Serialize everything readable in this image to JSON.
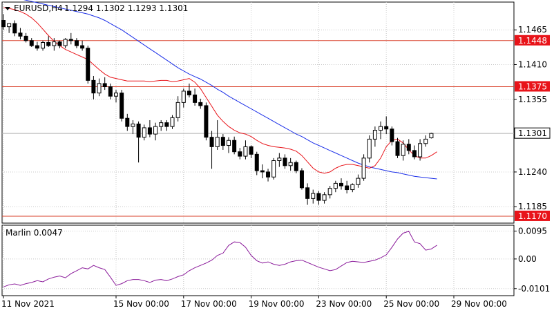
{
  "header": {
    "symbol": "EURUSD,H4",
    "ohlc": "1.1294 1.1302 1.1293 1.1301"
  },
  "indicator": {
    "label": "Marlin 0.0047"
  },
  "colors": {
    "bull_body": "#ffffff",
    "bear_body": "#000000",
    "ma_fast": "#e8141a",
    "ma_slow": "#1a2ee8",
    "level_line": "#d9402a",
    "level_badge": "#e8141a",
    "oscillator": "#8a1a9a",
    "grid": "#c8c8c8"
  },
  "chart_data": [
    {
      "type": "candlestick",
      "title": "",
      "y_ticks": [
        "1.1465",
        "1.1410",
        "1.1355",
        "1.1240",
        "1.1185"
      ],
      "y_tick_values": [
        1.1465,
        1.141,
        1.1355,
        1.124,
        1.1185
      ],
      "ylim": [
        1.1159,
        1.1509
      ],
      "x_ticks": [
        "11 Nov 2021",
        "15 Nov 00:00",
        "17 Nov 00:00",
        "19 Nov 00:00",
        "23 Nov 00:00",
        "25 Nov 00:00",
        "29 Nov 00:00"
      ],
      "x_tick_bars": [
        0,
        20,
        32,
        44,
        56,
        68,
        80
      ],
      "horizontal_levels": [
        {
          "value": 1.1448,
          "label": "1.1448"
        },
        {
          "value": 1.1375,
          "label": "1.1375"
        },
        {
          "value": 1.117,
          "label": "1.1170"
        }
      ],
      "current_price": {
        "value": 1.1301,
        "label": "1.1301"
      },
      "candles": [
        [
          1.148,
          1.149,
          1.1465,
          1.147
        ],
        [
          1.147,
          1.1475,
          1.146,
          1.1475
        ],
        [
          1.1475,
          1.148,
          1.1455,
          1.146
        ],
        [
          1.146,
          1.1468,
          1.145,
          1.1455
        ],
        [
          1.1455,
          1.146,
          1.1445,
          1.1448
        ],
        [
          1.1448,
          1.1452,
          1.1438,
          1.144
        ],
        [
          1.144,
          1.1446,
          1.1432,
          1.1436
        ],
        [
          1.1436,
          1.1448,
          1.1432,
          1.1445
        ],
        [
          1.1445,
          1.1455,
          1.1438,
          1.144
        ],
        [
          1.144,
          1.1452,
          1.1432,
          1.1446
        ],
        [
          1.1446,
          1.1448,
          1.1436,
          1.144
        ],
        [
          1.144,
          1.1452,
          1.1436,
          1.145
        ],
        [
          1.145,
          1.146,
          1.1442,
          1.1448
        ],
        [
          1.1448,
          1.1452,
          1.1436,
          1.144
        ],
        [
          1.144,
          1.1448,
          1.1432,
          1.1436
        ],
        [
          1.1436,
          1.144,
          1.138,
          1.1385
        ],
        [
          1.1385,
          1.1392,
          1.1355,
          1.1365
        ],
        [
          1.1365,
          1.1388,
          1.136,
          1.138
        ],
        [
          1.138,
          1.139,
          1.137,
          1.1375
        ],
        [
          1.1375,
          1.138,
          1.1355,
          1.136
        ],
        [
          1.136,
          1.137,
          1.135,
          1.1365
        ],
        [
          1.1365,
          1.137,
          1.132,
          1.1325
        ],
        [
          1.1325,
          1.1332,
          1.1305,
          1.1312
        ],
        [
          1.1312,
          1.1322,
          1.13,
          1.1316
        ],
        [
          1.1316,
          1.132,
          1.1255,
          1.1295
        ],
        [
          1.1295,
          1.1315,
          1.129,
          1.131
        ],
        [
          1.131,
          1.1322,
          1.1295,
          1.13
        ],
        [
          1.13,
          1.1318,
          1.129,
          1.1312
        ],
        [
          1.1312,
          1.1322,
          1.1305,
          1.1318
        ],
        [
          1.1318,
          1.1322,
          1.1305,
          1.1312
        ],
        [
          1.1312,
          1.133,
          1.1308,
          1.1326
        ],
        [
          1.1326,
          1.136,
          1.132,
          1.135
        ],
        [
          1.135,
          1.1372,
          1.1342,
          1.1368
        ],
        [
          1.1368,
          1.138,
          1.1358,
          1.1362
        ],
        [
          1.1362,
          1.1372,
          1.1345,
          1.135
        ],
        [
          1.135,
          1.1356,
          1.134,
          1.1345
        ],
        [
          1.1345,
          1.135,
          1.129,
          1.1295
        ],
        [
          1.1295,
          1.1305,
          1.1245,
          1.128
        ],
        [
          1.128,
          1.1322,
          1.1275,
          1.1295
        ],
        [
          1.1295,
          1.13,
          1.1275,
          1.1282
        ],
        [
          1.1282,
          1.1295,
          1.127,
          1.129
        ],
        [
          1.129,
          1.1296,
          1.1268,
          1.1272
        ],
        [
          1.1272,
          1.1278,
          1.126,
          1.1265
        ],
        [
          1.1265,
          1.129,
          1.126,
          1.128
        ],
        [
          1.128,
          1.1282,
          1.1262,
          1.1268
        ],
        [
          1.1268,
          1.1272,
          1.1235,
          1.1242
        ],
        [
          1.1242,
          1.1252,
          1.123,
          1.124
        ],
        [
          1.124,
          1.1245,
          1.1225,
          1.1232
        ],
        [
          1.1232,
          1.1262,
          1.1228,
          1.1258
        ],
        [
          1.1258,
          1.127,
          1.1248,
          1.1262
        ],
        [
          1.1262,
          1.1268,
          1.1245,
          1.125
        ],
        [
          1.125,
          1.1262,
          1.1242,
          1.1255
        ],
        [
          1.1255,
          1.1258,
          1.1238,
          1.1242
        ],
        [
          1.1242,
          1.1246,
          1.1212,
          1.1215
        ],
        [
          1.1215,
          1.1222,
          1.1188,
          1.1198
        ],
        [
          1.1198,
          1.1212,
          1.119,
          1.1206
        ],
        [
          1.1206,
          1.121,
          1.1188,
          1.1195
        ],
        [
          1.1195,
          1.1208,
          1.119,
          1.1204
        ],
        [
          1.1204,
          1.1218,
          1.1198,
          1.1214
        ],
        [
          1.1214,
          1.1226,
          1.1208,
          1.1222
        ],
        [
          1.1222,
          1.123,
          1.1212,
          1.1218
        ],
        [
          1.1218,
          1.1226,
          1.1206,
          1.1212
        ],
        [
          1.1212,
          1.1222,
          1.1208,
          1.122
        ],
        [
          1.122,
          1.1236,
          1.1215,
          1.123
        ],
        [
          1.123,
          1.1268,
          1.1226,
          1.1262
        ],
        [
          1.1262,
          1.1298,
          1.1255,
          1.1292
        ],
        [
          1.1292,
          1.1312,
          1.128,
          1.1306
        ],
        [
          1.1306,
          1.132,
          1.1292,
          1.1312
        ],
        [
          1.1312,
          1.1328,
          1.13,
          1.1308
        ],
        [
          1.1308,
          1.1312,
          1.1282,
          1.1288
        ],
        [
          1.1288,
          1.1294,
          1.1262,
          1.1266
        ],
        [
          1.1266,
          1.129,
          1.1258,
          1.1284
        ],
        [
          1.1284,
          1.1292,
          1.1268,
          1.1274
        ],
        [
          1.1274,
          1.1282,
          1.126,
          1.1264
        ],
        [
          1.1264,
          1.1292,
          1.1258,
          1.1285
        ],
        [
          1.1285,
          1.1298,
          1.128,
          1.1292
        ],
        [
          1.1294,
          1.1302,
          1.1293,
          1.1301
        ]
      ],
      "ma_fast": [
        1.15,
        1.1499,
        1.1497,
        1.1494,
        1.149,
        1.1484,
        1.1476,
        1.1466,
        1.1456,
        1.1447,
        1.144,
        1.1434,
        1.143,
        1.1426,
        1.1422,
        1.1418,
        1.141,
        1.1402,
        1.1395,
        1.139,
        1.1388,
        1.1386,
        1.1384,
        1.1384,
        1.1384,
        1.1384,
        1.1383,
        1.1384,
        1.1385,
        1.1385,
        1.1383,
        1.1384,
        1.1386,
        1.1388,
        1.1382,
        1.1372,
        1.1358,
        1.1344,
        1.133,
        1.132,
        1.1312,
        1.1306,
        1.1302,
        1.13,
        1.1296,
        1.129,
        1.1285,
        1.1282,
        1.128,
        1.1279,
        1.1278,
        1.1276,
        1.1273,
        1.1266,
        1.1256,
        1.1246,
        1.124,
        1.1238,
        1.124,
        1.1246,
        1.125,
        1.1252,
        1.1252,
        1.125,
        1.1248,
        1.1246,
        1.125,
        1.1262,
        1.128,
        1.129,
        1.1292,
        1.1286,
        1.1275,
        1.1266,
        1.1262,
        1.1262,
        1.1266,
        1.1272
      ],
      "ma_slow": [
        1.152,
        1.1518,
        1.1516,
        1.1514,
        1.1512,
        1.151,
        1.1508,
        1.1506,
        1.1504,
        1.1502,
        1.15,
        1.1498,
        1.1496,
        1.1494,
        1.1492,
        1.149,
        1.1487,
        1.1484,
        1.148,
        1.1475,
        1.147,
        1.1465,
        1.1459,
        1.1453,
        1.1447,
        1.1441,
        1.1435,
        1.1429,
        1.1423,
        1.1417,
        1.1411,
        1.1405,
        1.14,
        1.1395,
        1.1391,
        1.1387,
        1.1382,
        1.1377,
        1.1371,
        1.1366,
        1.136,
        1.1355,
        1.135,
        1.1345,
        1.134,
        1.1335,
        1.133,
        1.1325,
        1.132,
        1.1315,
        1.131,
        1.1305,
        1.13,
        1.1296,
        1.1291,
        1.1286,
        1.1282,
        1.1278,
        1.1274,
        1.127,
        1.1266,
        1.1262,
        1.1258,
        1.1254,
        1.1251,
        1.1248,
        1.1246,
        1.1244,
        1.1242,
        1.124,
        1.1239,
        1.1237,
        1.1235,
        1.1233,
        1.1232,
        1.1231,
        1.123,
        1.1229
      ]
    },
    {
      "type": "line",
      "title": "",
      "y_ticks": [
        "0.0095",
        "0.00",
        "-0.0101"
      ],
      "y_tick_values": [
        0.0095,
        0.0,
        -0.0101
      ],
      "ylim": [
        -0.0125,
        0.0115
      ],
      "series": [
        {
          "values": [
            -0.0095,
            -0.0088,
            -0.0085,
            -0.009,
            -0.0084,
            -0.008,
            -0.0074,
            -0.0078,
            -0.0068,
            -0.0062,
            -0.0058,
            -0.0064,
            -0.005,
            -0.004,
            -0.003,
            -0.0034,
            -0.0022,
            -0.003,
            -0.0036,
            -0.0062,
            -0.009,
            -0.0084,
            -0.0074,
            -0.007,
            -0.007,
            -0.0074,
            -0.008,
            -0.0072,
            -0.007,
            -0.0074,
            -0.0068,
            -0.006,
            -0.0054,
            -0.004,
            -0.003,
            -0.0022,
            -0.0014,
            -0.0004,
            0.0012,
            0.002,
            0.0046,
            0.0058,
            0.0056,
            0.004,
            0.0012,
            -0.0006,
            -0.0014,
            -0.001,
            -0.0018,
            -0.0022,
            -0.0018,
            -0.001,
            -0.0006,
            -0.0004,
            -0.0012,
            -0.002,
            -0.0028,
            -0.0034,
            -0.004,
            -0.0036,
            -0.0024,
            -0.0012,
            -0.0008,
            -0.001,
            -0.0012,
            -0.0008,
            -0.0004,
            0.0004,
            0.0014,
            0.004,
            0.0068,
            0.0088,
            0.0094,
            0.0058,
            0.0052,
            0.003,
            0.0034,
            0.0047
          ]
        }
      ]
    }
  ]
}
